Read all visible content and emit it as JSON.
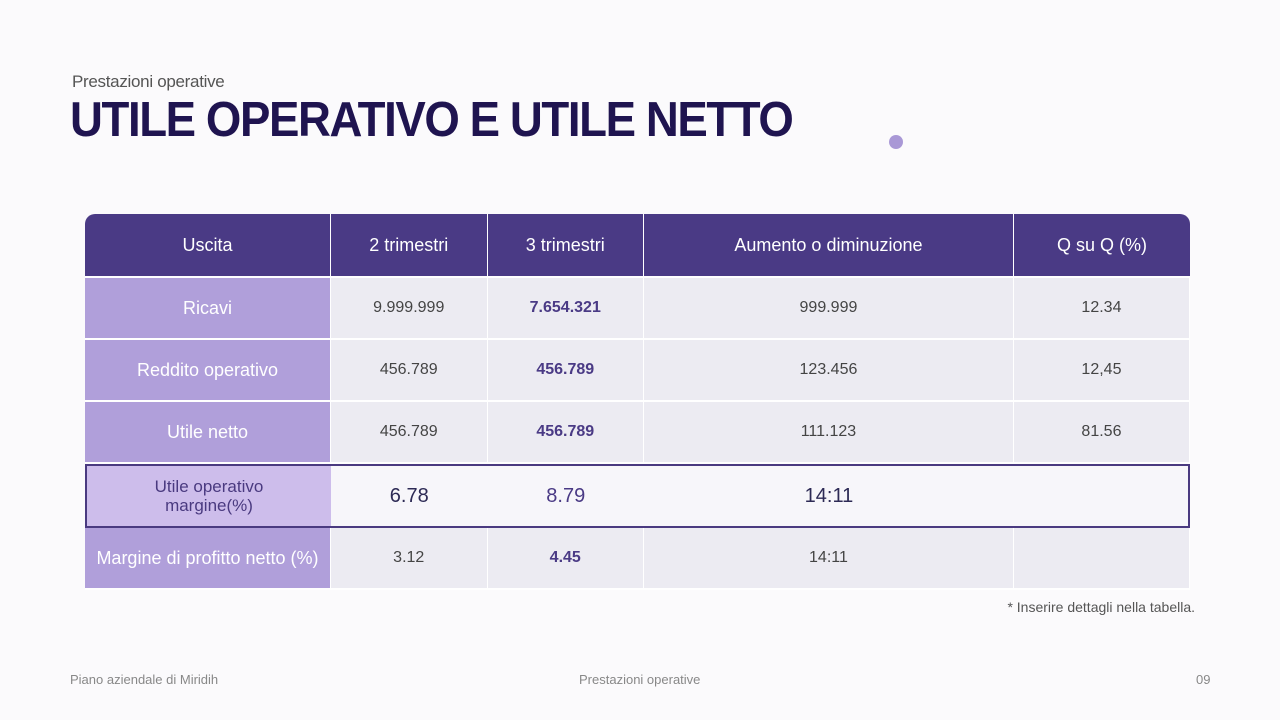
{
  "slide": {
    "subtitle": "Prestazioni operative",
    "title": "UTILE OPERATIVO E UTILE NETTO",
    "note": "* Inserire dettagli nella tabella."
  },
  "table": {
    "headers": [
      "Uscita",
      "2 trimestri",
      "3 trimestri",
      "Aumento o diminuzione",
      "Q su Q (%)"
    ],
    "rows": [
      {
        "label": "Ricavi",
        "cells": [
          "9.999.999",
          "7.654.321",
          "999.999",
          "12.34"
        ]
      },
      {
        "label": "Reddito operativo",
        "cells": [
          "456.789",
          "456.789",
          "123.456",
          "12,45"
        ]
      },
      {
        "label": "Utile netto",
        "cells": [
          "456.789",
          "456.789",
          "111.123",
          "81.56"
        ]
      },
      {
        "label": "Utile operativo margine(%)",
        "cells": [
          "6.78",
          "8.79",
          "14:11",
          ""
        ]
      },
      {
        "label": "Margine di profitto netto (%)",
        "cells": [
          "3.12",
          "4.45",
          "14:11",
          ""
        ]
      }
    ]
  },
  "footer": {
    "left": "Piano aziendale di Miridih",
    "center": "Prestazioni operative",
    "page": "09"
  },
  "colors": {
    "header": "#4a3a85",
    "label": "#b09fda",
    "title": "#1f1450",
    "accent_dot": "#a998d6"
  }
}
